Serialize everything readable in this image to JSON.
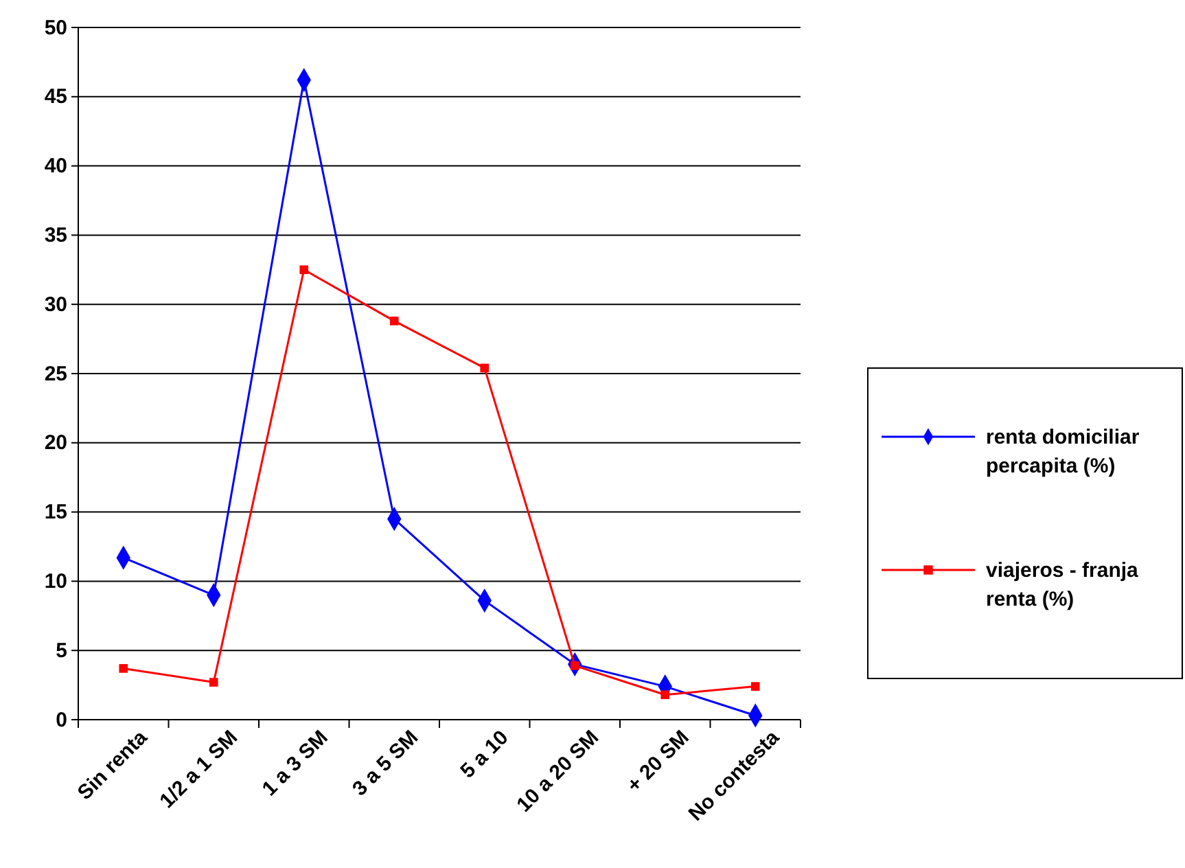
{
  "chart_data": {
    "type": "line",
    "categories": [
      "Sin renta",
      "1/2 a 1 SM",
      "1 a 3 SM",
      "3 a 5 SM",
      "5 a 10",
      "10 a 20 SM",
      "+ 20 SM",
      "No contesta"
    ],
    "series": [
      {
        "name": "renta domiciliar percapita (%)",
        "color": "#0000ff",
        "marker": "diamond",
        "values": [
          11.7,
          9.0,
          46.2,
          14.5,
          8.6,
          4.0,
          2.4,
          0.3
        ]
      },
      {
        "name": "viajeros - franja renta (%)",
        "color": "#ff0000",
        "marker": "square",
        "values": [
          3.7,
          2.7,
          32.5,
          28.8,
          25.4,
          3.9,
          1.8,
          2.4
        ]
      }
    ],
    "ylim": [
      0,
      50
    ],
    "yticks": [
      0,
      5,
      10,
      15,
      20,
      25,
      30,
      35,
      40,
      45,
      50
    ],
    "grid": "y",
    "legend": "right",
    "line_style": "solid"
  }
}
